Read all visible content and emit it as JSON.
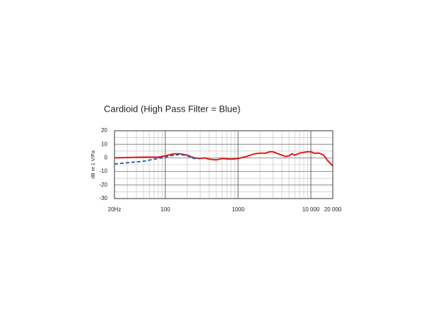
{
  "chart_data": {
    "type": "line",
    "title": "Cardioid (High Pass Filter = Blue)",
    "ylabel": "dB re 1 V/Pa",
    "xscale": "log",
    "xlim": [
      20,
      20000
    ],
    "ylim": [
      -30,
      20
    ],
    "xticks": [
      {
        "value": 20,
        "label": "20Hz"
      },
      100,
      1000,
      {
        "value": 10000,
        "label": "10 000"
      },
      {
        "value": 20000,
        "label": "20 000"
      }
    ],
    "yticks": [
      20,
      10,
      0,
      -10,
      -20,
      -30
    ],
    "xminor": [
      30,
      40,
      50,
      60,
      70,
      80,
      90,
      200,
      300,
      400,
      500,
      600,
      700,
      800,
      900,
      2000,
      3000,
      4000,
      5000,
      6000,
      7000,
      8000,
      9000
    ],
    "yminor": [
      15,
      5,
      -5,
      -15,
      -25
    ],
    "grid": true,
    "series": [
      {
        "color": "#e01b1b",
        "dash": false,
        "x": [
          20,
          50,
          80,
          100,
          130,
          160,
          200,
          250,
          300,
          350,
          400,
          500,
          600,
          800,
          1000,
          1300,
          1700,
          2000,
          2400,
          2700,
          3000,
          4000,
          4500,
          5000,
          5500,
          6000,
          7000,
          9000,
          10000,
          11000,
          13000,
          15000,
          17000,
          20000
        ],
        "values": [
          0,
          0.5,
          0.5,
          1.5,
          3,
          3,
          2,
          0,
          -0.5,
          0,
          -1,
          -1.5,
          -0.5,
          -1,
          -0.5,
          1,
          3,
          3.5,
          3.5,
          4.5,
          4.5,
          2,
          1,
          1.5,
          3,
          2,
          3.5,
          4.5,
          4.5,
          3.5,
          3.5,
          2,
          -2,
          -6
        ]
      },
      {
        "color": "#1f5fa8",
        "dash": true,
        "x": [
          20,
          50,
          100,
          130,
          160,
          200,
          250,
          300
        ],
        "values": [
          -4.5,
          -2.5,
          0.5,
          2,
          2.5,
          1.5,
          -0.5,
          -0.5
        ]
      }
    ]
  }
}
